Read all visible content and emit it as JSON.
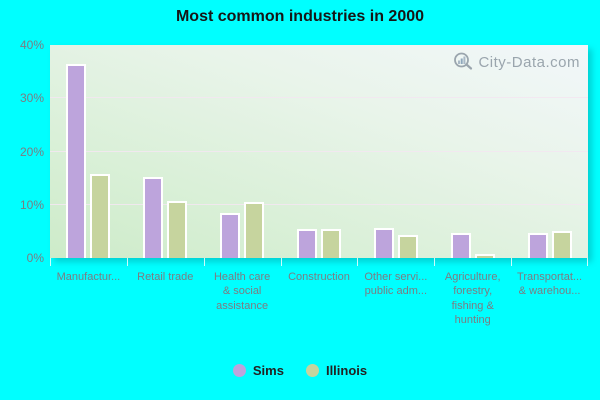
{
  "title": "Most common industries in 2000",
  "watermark": {
    "text": "City-Data.com"
  },
  "colors": {
    "background": "#00ffff",
    "sims_bar": "#bda4dc",
    "illinois_bar": "#c6d49e",
    "gridline": "#f3e7f1",
    "axis_text": "#7c7c82",
    "title_text": "#161616",
    "watermark_text": "#9aa5ad"
  },
  "legend": {
    "items": [
      {
        "label": "Sims",
        "color": "#bda4dc"
      },
      {
        "label": "Illinois",
        "color": "#c6d49e"
      }
    ]
  },
  "chart_data": {
    "type": "bar",
    "title": "Most common industries in 2000",
    "categories": [
      "Manufactur...",
      "Retail trade",
      "Health care\n& social\nassistance",
      "Construction",
      "Other servi...\npublic adm...",
      "Agriculture,\nforestry,\nfishing &\nhunting",
      "Transportat...\n& warehou..."
    ],
    "series": [
      {
        "name": "Sims",
        "color": "#bda4dc",
        "values": [
          36.4,
          15.2,
          8.5,
          5.5,
          5.6,
          4.7,
          4.7
        ]
      },
      {
        "name": "Illinois",
        "color": "#c6d49e",
        "values": [
          15.8,
          10.7,
          10.5,
          5.5,
          4.3,
          0.8,
          5.1
        ]
      }
    ],
    "xlabel": "",
    "ylabel": "",
    "ylim": [
      0,
      40
    ],
    "yticks": [
      {
        "value": 0,
        "label": "0%"
      },
      {
        "value": 10,
        "label": "10%"
      },
      {
        "value": 20,
        "label": "20%"
      },
      {
        "value": 30,
        "label": "30%"
      },
      {
        "value": 40,
        "label": "40%"
      }
    ],
    "grid": true,
    "legend_position": "bottom"
  }
}
